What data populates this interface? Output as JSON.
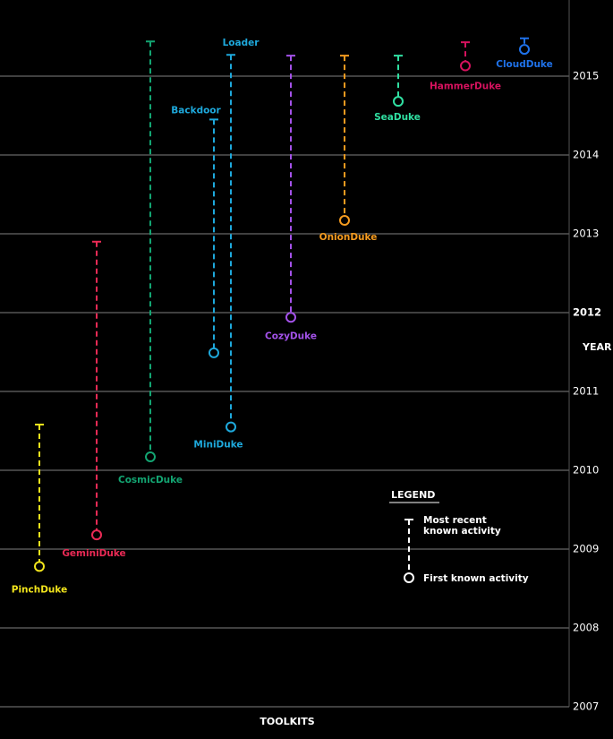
{
  "chart_data": {
    "type": "range-timeline",
    "xlabel": "TOOLKITS",
    "ylabel": "YEAR",
    "ylim": [
      2007,
      2015.5
    ],
    "yticks": [
      "2015",
      "2014",
      "2013",
      "2012",
      "2011",
      "2010",
      "2009",
      "2008",
      "2007"
    ],
    "grid": true,
    "legend": {
      "title": "LEGEND",
      "most_recent": "Most recent known activity",
      "most_recent_line1": "Most recent",
      "most_recent_line2": "known activity",
      "first": "First known activity",
      "placement": "bottom-right"
    },
    "series": [
      {
        "name": "PinchDuke",
        "first": 2008.78,
        "last": 2010.58,
        "color": "#f2e51c"
      },
      {
        "name": "GeminiDuke",
        "first": 2009.18,
        "last": 2012.9,
        "color": "#ea2a55"
      },
      {
        "name": "CosmicDuke",
        "first": 2010.17,
        "last": 2015.44,
        "color": "#13a572"
      },
      {
        "name": "Backdoor",
        "first": 2011.49,
        "last": 2014.45,
        "color": "#1ea9dc"
      },
      {
        "name": "Loader",
        "first": 2010.55,
        "last": 2015.27,
        "color": "#1ea9dc",
        "group_label": "MiniDuke"
      },
      {
        "name": "CozyDuke",
        "first": 2011.94,
        "last": 2015.26,
        "color": "#a452ea"
      },
      {
        "name": "OnionDuke",
        "first": 2013.17,
        "last": 2015.26,
        "color": "#f59b1f"
      },
      {
        "name": "SeaDuke",
        "first": 2014.68,
        "last": 2015.26,
        "color": "#30e0a2"
      },
      {
        "name": "HammerDuke",
        "first": 2015.13,
        "last": 2015.43,
        "color": "#d6125e"
      },
      {
        "name": "CloudDuke",
        "first": 2015.34,
        "last": 2015.48,
        "color": "#1f72ea"
      }
    ]
  }
}
